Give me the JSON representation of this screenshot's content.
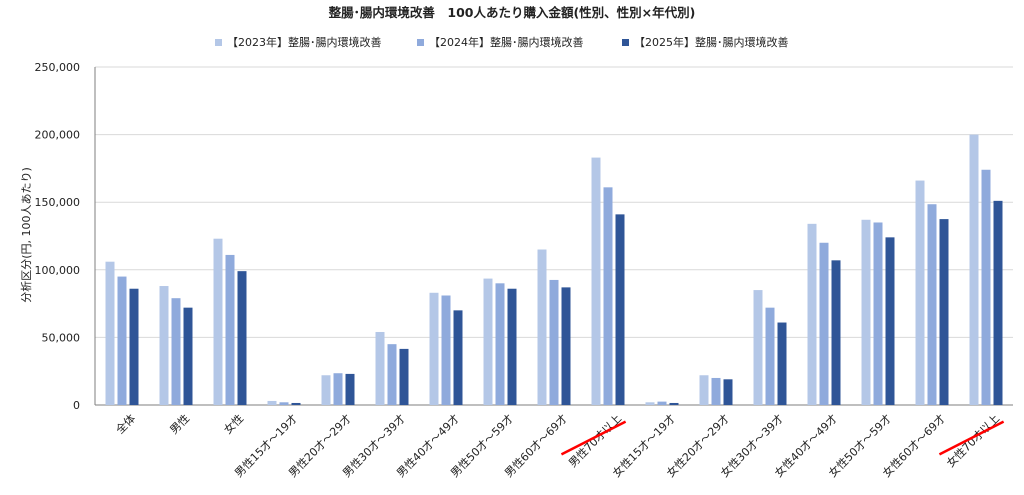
{
  "chart_data": {
    "type": "bar",
    "title": "整腸･腸内環境改善　100人あたり購入金額(性別、性別×年代別)",
    "ylabel": "分析区分(円, 100人あたり)",
    "xlabel": "",
    "ylim": [
      0,
      250000
    ],
    "yticks": [
      "0",
      "50,000",
      "100,000",
      "150,000",
      "200,000",
      "250,000"
    ],
    "ytick_values": [
      0,
      50000,
      100000,
      150000,
      200000,
      250000
    ],
    "legend_position": "top-center",
    "grid": true,
    "categories": [
      "全体",
      "男性",
      "女性",
      "男性15才～19才",
      "男性20才～29才",
      "男性30才～39才",
      "男性40才～49才",
      "男性50才～59才",
      "男性60才～69才",
      "男性70才以上",
      "女性15才～19才",
      "女性20才～29才",
      "女性30才～39才",
      "女性40才～49才",
      "女性50才～59才",
      "女性60才～69才",
      "女性70才以上"
    ],
    "series": [
      {
        "name": "【2023年】整腸･腸内環境改善",
        "color": "#b4c7e7",
        "values": [
          106000,
          88000,
          123000,
          3000,
          22000,
          54000,
          83000,
          93500,
          115000,
          183000,
          2000,
          22000,
          85000,
          134000,
          137000,
          166000,
          200000
        ]
      },
      {
        "name": "【2024年】整腸･腸内環境改善",
        "color": "#8faadc",
        "values": [
          95000,
          79000,
          111000,
          2000,
          23500,
          45000,
          81000,
          90000,
          92500,
          161000,
          2500,
          20000,
          72000,
          120000,
          135000,
          148500,
          174000
        ]
      },
      {
        "name": "【2025年】整腸･腸内環境改善",
        "color": "#2f5597",
        "values": [
          86000,
          72000,
          99000,
          1500,
          23000,
          41500,
          70000,
          86000,
          87000,
          141000,
          1500,
          19000,
          61000,
          107000,
          124000,
          137500,
          151000
        ]
      }
    ],
    "highlighted_categories": [
      "男性70才以上",
      "女性70才以上"
    ],
    "highlight_color": "#ff0000"
  }
}
